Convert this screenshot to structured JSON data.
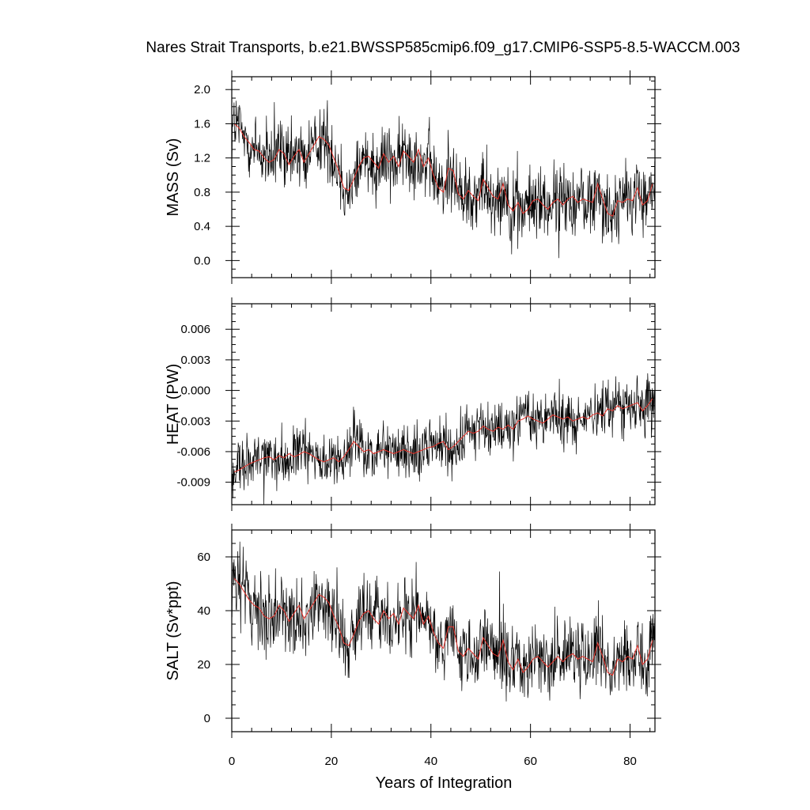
{
  "chart_data": {
    "type": "line",
    "title": "Nares Strait Transports, b.e21.BWSSP585cmip6.f09_g17.CMIP6-SSP5-8.5-WACCM.003",
    "xlabel": "Years of Integration",
    "xlim": [
      0,
      85
    ],
    "xticks": [
      0,
      20,
      40,
      60,
      80
    ],
    "series_colors": {
      "monthly": "#000000",
      "annual": "#e8322a"
    },
    "panels": [
      {
        "ylabel": "MASS (Sv)",
        "ylim": [
          -0.2,
          2.15
        ],
        "yticks": [
          0.0,
          0.4,
          0.8,
          1.2,
          1.6,
          2.0
        ],
        "ytick_labels": [
          "0.0",
          "0.4",
          "0.8",
          "1.2",
          "1.6",
          "2.0"
        ],
        "annual_x": [
          0.5,
          1.5,
          2.5,
          3.5,
          4.5,
          5.5,
          6.5,
          7.5,
          8.5,
          9.5,
          10.5,
          11.5,
          12.5,
          13.5,
          14.5,
          15.5,
          16.5,
          17.5,
          18.5,
          19.5,
          20.5,
          21.5,
          22.5,
          23.5,
          24.5,
          25.5,
          26.5,
          27.5,
          28.5,
          29.5,
          30.5,
          31.5,
          32.5,
          33.5,
          34.5,
          35.5,
          36.5,
          37.5,
          38.5,
          39.5,
          40.5,
          41.5,
          42.5,
          43.5,
          44.5,
          45.5,
          46.5,
          47.5,
          48.5,
          49.5,
          50.5,
          51.5,
          52.5,
          53.5,
          54.5,
          55.5,
          56.5,
          57.5,
          58.5,
          59.5,
          60.5,
          61.5,
          62.5,
          63.5,
          64.5,
          65.5,
          66.5,
          67.5,
          68.5,
          69.5,
          70.5,
          71.5,
          72.5,
          73.5,
          74.5,
          75.5,
          76.5,
          77.5,
          78.5,
          79.5,
          80.5,
          81.5,
          82.5,
          83.5,
          84.5
        ],
        "annual_values": [
          1.6,
          1.55,
          1.45,
          1.38,
          1.3,
          1.28,
          1.2,
          1.15,
          1.18,
          1.3,
          1.25,
          1.12,
          1.22,
          1.3,
          1.15,
          1.25,
          1.35,
          1.45,
          1.42,
          1.35,
          1.2,
          1.05,
          0.85,
          0.82,
          0.95,
          1.1,
          1.2,
          1.22,
          1.15,
          1.08,
          1.25,
          1.15,
          1.22,
          1.1,
          1.28,
          1.22,
          1.15,
          1.3,
          1.1,
          1.2,
          1.0,
          0.85,
          0.8,
          1.08,
          1.05,
          0.78,
          0.72,
          0.82,
          0.75,
          0.7,
          0.95,
          0.85,
          0.75,
          0.72,
          0.9,
          0.65,
          0.58,
          0.68,
          0.55,
          0.6,
          0.7,
          0.72,
          0.65,
          0.6,
          0.68,
          0.72,
          0.65,
          0.72,
          0.75,
          0.68,
          0.72,
          0.7,
          0.68,
          0.9,
          0.72,
          0.55,
          0.52,
          0.7,
          0.68,
          0.72,
          0.7,
          0.85,
          0.65,
          0.7,
          0.9
        ],
        "monthly_noise": 0.33
      },
      {
        "ylabel": "HEAT (PW)",
        "ylim": [
          -0.0112,
          0.0085
        ],
        "yticks": [
          -0.009,
          -0.006,
          -0.003,
          0.0,
          0.003,
          0.006
        ],
        "ytick_labels": [
          "-0.009",
          "-0.006",
          "-0.003",
          "0.000",
          "0.003",
          "0.006"
        ],
        "annual_x": [
          0.5,
          1.5,
          2.5,
          3.5,
          4.5,
          5.5,
          6.5,
          7.5,
          8.5,
          9.5,
          10.5,
          11.5,
          12.5,
          13.5,
          14.5,
          15.5,
          16.5,
          17.5,
          18.5,
          19.5,
          20.5,
          21.5,
          22.5,
          23.5,
          24.5,
          25.5,
          26.5,
          27.5,
          28.5,
          29.5,
          30.5,
          31.5,
          32.5,
          33.5,
          34.5,
          35.5,
          36.5,
          37.5,
          38.5,
          39.5,
          40.5,
          41.5,
          42.5,
          43.5,
          44.5,
          45.5,
          46.5,
          47.5,
          48.5,
          49.5,
          50.5,
          51.5,
          52.5,
          53.5,
          54.5,
          55.5,
          56.5,
          57.5,
          58.5,
          59.5,
          60.5,
          61.5,
          62.5,
          63.5,
          64.5,
          65.5,
          66.5,
          67.5,
          68.5,
          69.5,
          70.5,
          71.5,
          72.5,
          73.5,
          74.5,
          75.5,
          76.5,
          77.5,
          78.5,
          79.5,
          80.5,
          81.5,
          82.5,
          83.5,
          84.5
        ],
        "annual_values": [
          -0.008,
          -0.0078,
          -0.0075,
          -0.0072,
          -0.007,
          -0.0068,
          -0.0066,
          -0.0065,
          -0.0068,
          -0.0064,
          -0.0066,
          -0.0062,
          -0.0065,
          -0.0063,
          -0.006,
          -0.0062,
          -0.0065,
          -0.0068,
          -0.007,
          -0.0068,
          -0.0066,
          -0.007,
          -0.0065,
          -0.0058,
          -0.005,
          -0.0055,
          -0.006,
          -0.0058,
          -0.0062,
          -0.006,
          -0.0058,
          -0.006,
          -0.0062,
          -0.006,
          -0.0058,
          -0.006,
          -0.0062,
          -0.006,
          -0.0058,
          -0.0056,
          -0.0055,
          -0.0052,
          -0.005,
          -0.0058,
          -0.0055,
          -0.005,
          -0.0045,
          -0.004,
          -0.0042,
          -0.004,
          -0.0035,
          -0.0038,
          -0.004,
          -0.0036,
          -0.0038,
          -0.0034,
          -0.0038,
          -0.003,
          -0.0028,
          -0.0025,
          -0.0028,
          -0.003,
          -0.0032,
          -0.0028,
          -0.0024,
          -0.0026,
          -0.0028,
          -0.0026,
          -0.003,
          -0.0028,
          -0.0026,
          -0.0028,
          -0.0024,
          -0.0022,
          -0.0025,
          -0.0018,
          -0.002,
          -0.0015,
          -0.0018,
          -0.0016,
          -0.0014,
          -0.0012,
          -0.002,
          -0.0015,
          -0.0008
        ],
        "monthly_noise": 0.0021
      },
      {
        "ylabel": "SALT (Sv*ppt)",
        "ylim": [
          -5,
          70
        ],
        "yticks": [
          0,
          20,
          40,
          60
        ],
        "ytick_labels": [
          "0",
          "20",
          "40",
          "60"
        ],
        "annual_x": [
          0.5,
          1.5,
          2.5,
          3.5,
          4.5,
          5.5,
          6.5,
          7.5,
          8.5,
          9.5,
          10.5,
          11.5,
          12.5,
          13.5,
          14.5,
          15.5,
          16.5,
          17.5,
          18.5,
          19.5,
          20.5,
          21.5,
          22.5,
          23.5,
          24.5,
          25.5,
          26.5,
          27.5,
          28.5,
          29.5,
          30.5,
          31.5,
          32.5,
          33.5,
          34.5,
          35.5,
          36.5,
          37.5,
          38.5,
          39.5,
          40.5,
          41.5,
          42.5,
          43.5,
          44.5,
          45.5,
          46.5,
          47.5,
          48.5,
          49.5,
          50.5,
          51.5,
          52.5,
          53.5,
          54.5,
          55.5,
          56.5,
          57.5,
          58.5,
          59.5,
          60.5,
          61.5,
          62.5,
          63.5,
          64.5,
          65.5,
          66.5,
          67.5,
          68.5,
          69.5,
          70.5,
          71.5,
          72.5,
          73.5,
          74.5,
          75.5,
          76.5,
          77.5,
          78.5,
          79.5,
          80.5,
          81.5,
          82.5,
          83.5,
          84.5
        ],
        "annual_values": [
          52,
          50,
          47,
          44,
          42,
          41,
          38,
          37,
          38,
          42,
          40,
          36,
          39,
          42,
          37,
          40,
          43,
          46,
          45,
          43,
          38,
          34,
          28,
          27,
          31,
          36,
          39,
          40,
          37,
          35,
          40,
          37,
          39,
          35,
          41,
          39,
          37,
          42,
          35,
          38,
          32,
          28,
          26,
          34,
          34,
          25,
          23,
          26,
          24,
          22,
          30,
          27,
          24,
          23,
          29,
          21,
          18,
          22,
          17,
          19,
          22,
          23,
          21,
          19,
          21,
          23,
          21,
          23,
          24,
          22,
          23,
          22,
          21,
          28,
          23,
          17,
          16,
          22,
          21,
          23,
          22,
          27,
          20,
          22,
          29
        ],
        "monthly_noise": 10.5
      }
    ]
  }
}
